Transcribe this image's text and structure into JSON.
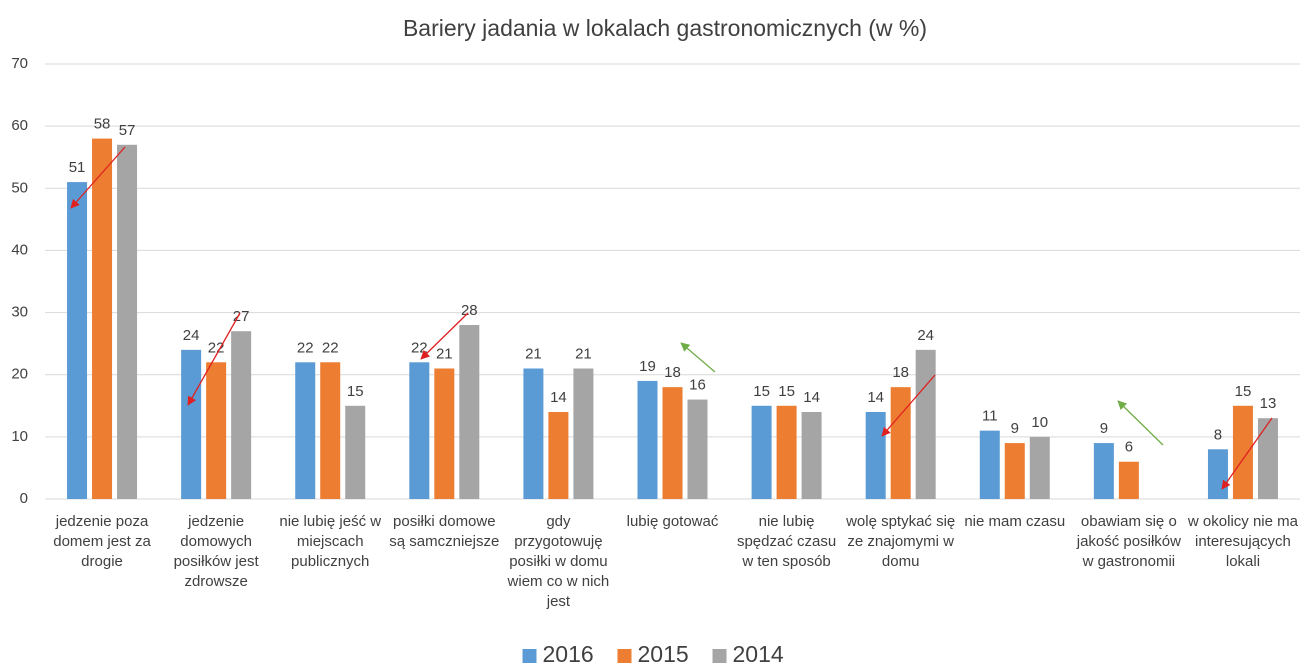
{
  "chart_data": {
    "type": "bar",
    "title": "Bariery jadania w lokalach gastronomicznych (w %)",
    "categories": [
      "jedzenie poza domem jest za drogie",
      "jedzenie domowych posiłków jest zdrowsze",
      "nie lubię jeść w miejscach publicznych",
      "posiłki domowe są samczniejsze",
      "gdy przygotowuję posiłki w domu wiem co w nich jest",
      "lubię gotować",
      "nie lubię spędzać czasu w ten sposób",
      "wolę sptykać się ze znajomymi w domu",
      "nie mam czasu",
      "obawiam się o jakość posiłków w gastronomii",
      "w okolicy nie ma interesujących lokali"
    ],
    "series": [
      {
        "name": "2016",
        "color": "#5b9bd5",
        "values": [
          51,
          24,
          22,
          22,
          21,
          19,
          15,
          14,
          11,
          9,
          8
        ]
      },
      {
        "name": "2015",
        "color": "#ed7d31",
        "values": [
          58,
          22,
          22,
          21,
          14,
          18,
          15,
          18,
          9,
          6,
          15
        ]
      },
      {
        "name": "2014",
        "color": "#a5a5a5",
        "values": [
          57,
          27,
          15,
          28,
          21,
          16,
          14,
          24,
          10,
          null,
          13
        ]
      }
    ],
    "ylim": [
      0,
      70
    ],
    "yticks": [
      0,
      10,
      20,
      30,
      40,
      50,
      60,
      70
    ],
    "grid": true,
    "legend": "bottom"
  }
}
